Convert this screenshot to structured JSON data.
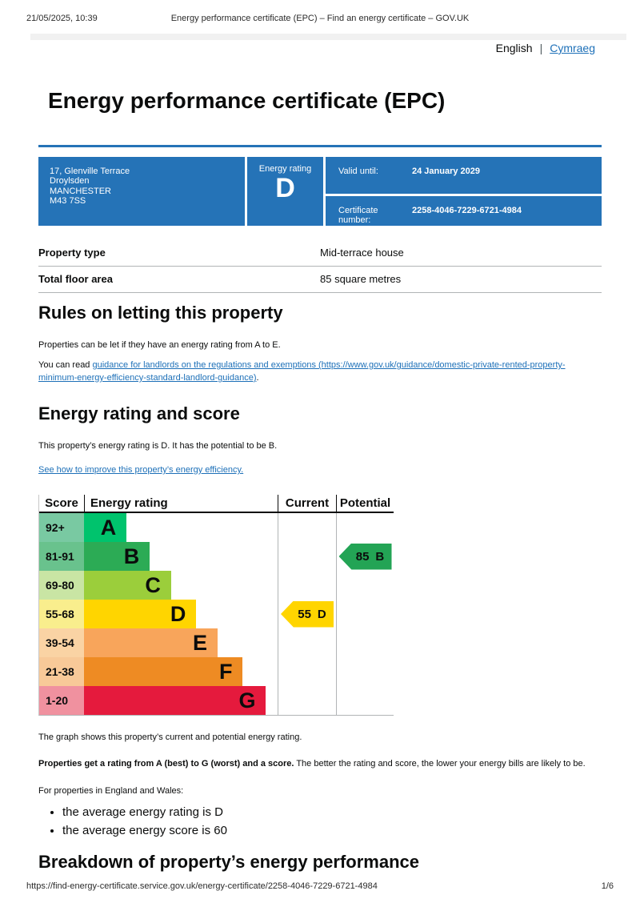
{
  "colors": {
    "accent_blue": "#2573b7",
    "link_blue": "#1d70b8",
    "text": "#0b0c0c",
    "border_gray": "#b1b4b6",
    "topbar_gray": "#f1f1f1"
  },
  "print_header": {
    "datetime": "21/05/2025, 10:39",
    "title": "Energy performance certificate (EPC) – Find an energy certificate – GOV.UK"
  },
  "language_bar": {
    "current": "English",
    "separator": "|",
    "link": "Cymraeg"
  },
  "page_title": "Energy performance certificate (EPC)",
  "summary_box": {
    "address_lines": [
      "17, Glenville Terrace",
      "Droylsden",
      "MANCHESTER",
      "M43 7SS"
    ],
    "energy_rating_label": "Energy rating",
    "energy_rating_value": "D",
    "valid_until_label": "Valid until:",
    "valid_until_value": "24 January 2029",
    "certificate_number_label": "Certificate number:",
    "certificate_number_value": "2258-4046-7229-6721-4984"
  },
  "property_table": {
    "rows": [
      {
        "label": "Property type",
        "value": "Mid-terrace house"
      },
      {
        "label": "Total floor area",
        "value": "85 square metres"
      }
    ]
  },
  "rules_section": {
    "heading": "Rules on letting this property",
    "paragraph": "Properties can be let if they have an energy rating from A to E.",
    "read_prefix": "You can read ",
    "guidance_link": "guidance for landlords on the regulations and exemptions (https://www.gov.uk/guidance/domestic-private-rented-property-minimum-energy-efficiency-standard-landlord-guidance)",
    "read_suffix": "."
  },
  "rating_section": {
    "heading": "Energy rating and score",
    "summary": "This property’s energy rating is D. It has the potential to be B.",
    "improve_link": "See how to improve this property’s energy efficiency."
  },
  "chart_data": {
    "type": "bar",
    "title": "Energy rating and score",
    "columns": [
      "Score",
      "Energy rating",
      "Current",
      "Potential"
    ],
    "bands": [
      {
        "score_range": "92+",
        "letter": "A",
        "width_pct": 22,
        "color": "#00c36d",
        "tint": "#79c9a2"
      },
      {
        "score_range": "81-91",
        "letter": "B",
        "width_pct": 34,
        "color": "#2cab55",
        "tint": "#69c28d"
      },
      {
        "score_range": "69-80",
        "letter": "C",
        "width_pct": 45,
        "color": "#9bce3b",
        "tint": "#c9e5a4"
      },
      {
        "score_range": "55-68",
        "letter": "D",
        "width_pct": 58,
        "color": "#ffd500",
        "tint": "#f9ee8d"
      },
      {
        "score_range": "39-54",
        "letter": "E",
        "width_pct": 69,
        "color": "#f8a55b",
        "tint": "#fad3a4"
      },
      {
        "score_range": "21-38",
        "letter": "F",
        "width_pct": 82,
        "color": "#ee8b23",
        "tint": "#f8c998"
      },
      {
        "score_range": "1-20",
        "letter": "G",
        "width_pct": 94,
        "color": "#e51a3d",
        "tint": "#f0919f"
      }
    ],
    "current": {
      "score": 55,
      "letter": "D",
      "color": "#ffd500"
    },
    "potential": {
      "score": 85,
      "letter": "B",
      "color": "#23a455"
    }
  },
  "below_chart": {
    "caption": "The graph shows this property’s current and potential energy rating.",
    "rating_bold": "Properties get a rating from A (best) to G (worst) and a score.",
    "rating_rest": " The better the rating and score, the lower your energy bills are likely to be.",
    "regions_intro": "For properties in England and Wales:",
    "bullets": [
      "the average energy rating is D",
      "the average energy score is 60"
    ]
  },
  "breakdown_heading": "Breakdown of property’s energy performance",
  "print_footer": {
    "url": "https://find-energy-certificate.service.gov.uk/energy-certificate/2258-4046-7229-6721-4984",
    "page_indicator": "1/6"
  }
}
